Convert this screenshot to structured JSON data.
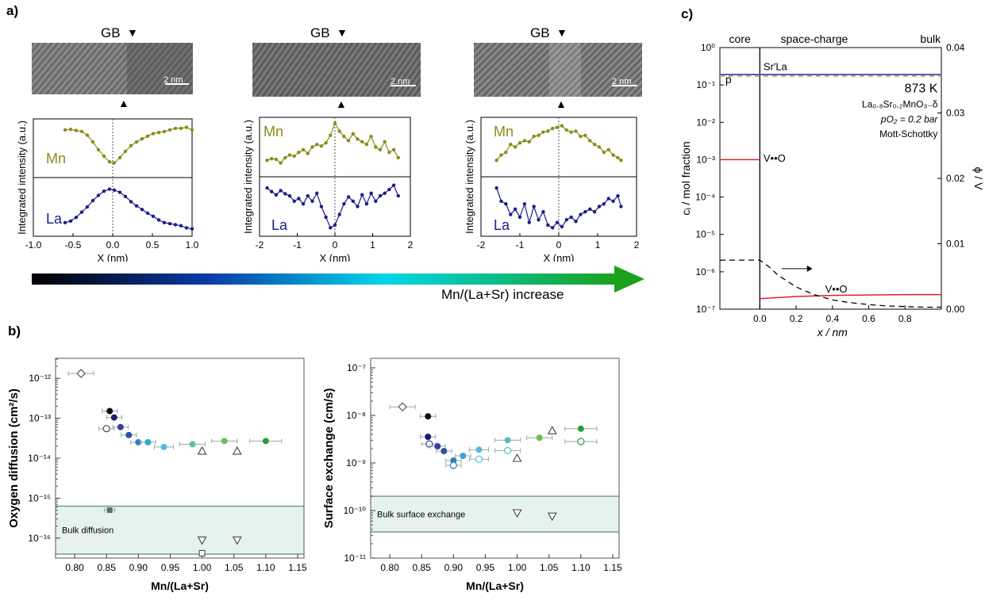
{
  "panel_labels": {
    "a": "a)",
    "b": "b)",
    "c": "c)"
  },
  "gb_label": "GB",
  "scale_bar": "2 nm",
  "gradient_label": "Mn/(La+Sr) increase",
  "colors": {
    "mn": "#8b8b1a",
    "la": "#1c1c8c",
    "gradient_start": "#000000",
    "gradient_mid": "#00e0f0",
    "gradient_end": "#1fa81f",
    "red": "#e0202a",
    "purple": "#7b3fd8",
    "green_dash": "#7ed321"
  },
  "chart_data": [
    {
      "type": "line",
      "id": "a1",
      "ylabel": "Integrated intensity (a.u.)",
      "xlabel": "X (nm)",
      "xlim": [
        -1.0,
        1.0
      ],
      "xticks": [
        "-1.0",
        "-0.5",
        "0.0",
        "0.5",
        "1.0"
      ],
      "series": [
        {
          "name": "Mn",
          "x": [
            -0.6,
            -0.53,
            -0.46,
            -0.39,
            -0.32,
            -0.25,
            -0.18,
            -0.11,
            -0.04,
            0.02,
            0.09,
            0.16,
            0.23,
            0.3,
            0.37,
            0.44,
            0.51,
            0.58,
            0.65,
            0.72,
            0.79,
            0.86,
            0.93,
            1.0
          ],
          "values": [
            0.85,
            0.86,
            0.84,
            0.82,
            0.75,
            0.62,
            0.47,
            0.35,
            0.24,
            0.22,
            0.32,
            0.44,
            0.55,
            0.62,
            0.68,
            0.73,
            0.78,
            0.8,
            0.82,
            0.85,
            0.88,
            0.88,
            0.9,
            0.85
          ]
        },
        {
          "name": "La",
          "x": [
            -0.6,
            -0.53,
            -0.46,
            -0.39,
            -0.32,
            -0.25,
            -0.18,
            -0.11,
            -0.04,
            0.02,
            0.09,
            0.16,
            0.23,
            0.3,
            0.37,
            0.44,
            0.51,
            0.58,
            0.65,
            0.72,
            0.79,
            0.86,
            0.93,
            1.0
          ],
          "values": [
            0.2,
            0.23,
            0.3,
            0.4,
            0.5,
            0.62,
            0.72,
            0.8,
            0.84,
            0.82,
            0.78,
            0.7,
            0.6,
            0.52,
            0.45,
            0.38,
            0.32,
            0.25,
            0.2,
            0.18,
            0.16,
            0.14,
            0.1,
            0.08
          ]
        }
      ]
    },
    {
      "type": "line",
      "id": "a2",
      "ylabel": "Integrated intensity (a.u.)",
      "xlabel": "X (nm)",
      "xlim": [
        -2,
        2
      ],
      "xticks": [
        "-2",
        "-1",
        "0",
        "1",
        "2"
      ],
      "series": [
        {
          "name": "Mn",
          "x": [
            -1.8,
            -1.68,
            -1.56,
            -1.44,
            -1.32,
            -1.2,
            -1.08,
            -0.96,
            -0.84,
            -0.72,
            -0.6,
            -0.48,
            -0.36,
            -0.24,
            -0.12,
            0.0,
            0.12,
            0.24,
            0.36,
            0.48,
            0.6,
            0.72,
            0.84,
            0.96,
            1.08,
            1.2,
            1.32,
            1.44,
            1.56,
            1.68
          ],
          "values": [
            0.25,
            0.28,
            0.27,
            0.2,
            0.3,
            0.35,
            0.33,
            0.4,
            0.45,
            0.38,
            0.5,
            0.55,
            0.52,
            0.58,
            0.72,
            0.95,
            0.8,
            0.7,
            0.62,
            0.75,
            0.65,
            0.6,
            0.55,
            0.7,
            0.5,
            0.45,
            0.6,
            0.4,
            0.45,
            0.3
          ]
        },
        {
          "name": "La",
          "x": [
            -1.8,
            -1.68,
            -1.56,
            -1.44,
            -1.32,
            -1.2,
            -1.08,
            -0.96,
            -0.84,
            -0.72,
            -0.6,
            -0.48,
            -0.36,
            -0.24,
            -0.12,
            0.0,
            0.12,
            0.24,
            0.36,
            0.48,
            0.6,
            0.72,
            0.84,
            0.96,
            1.08,
            1.2,
            1.32,
            1.44,
            1.56,
            1.68
          ],
          "values": [
            0.85,
            0.78,
            0.72,
            0.8,
            0.74,
            0.7,
            0.6,
            0.65,
            0.55,
            0.7,
            0.6,
            0.75,
            0.5,
            0.3,
            0.1,
            0.15,
            0.35,
            0.55,
            0.68,
            0.6,
            0.5,
            0.72,
            0.55,
            0.75,
            0.6,
            0.7,
            0.75,
            0.82,
            0.9,
            0.7
          ]
        }
      ]
    },
    {
      "type": "line",
      "id": "a3",
      "ylabel": "Integrated intensity (a.u.)",
      "xlabel": "X (nm)",
      "xlim": [
        -2,
        2
      ],
      "xticks": [
        "-2",
        "-1",
        "0",
        "1",
        "2"
      ],
      "series": [
        {
          "name": "Mn",
          "x": [
            -1.6,
            -1.48,
            -1.36,
            -1.24,
            -1.12,
            -1.0,
            -0.88,
            -0.76,
            -0.64,
            -0.52,
            -0.4,
            -0.28,
            -0.16,
            -0.04,
            0.08,
            0.2,
            0.32,
            0.44,
            0.56,
            0.68,
            0.8,
            0.92,
            1.04,
            1.16,
            1.28,
            1.4,
            1.52,
            1.6
          ],
          "values": [
            0.25,
            0.35,
            0.4,
            0.55,
            0.5,
            0.58,
            0.62,
            0.6,
            0.7,
            0.72,
            0.78,
            0.8,
            0.85,
            0.87,
            0.9,
            0.82,
            0.78,
            0.8,
            0.7,
            0.72,
            0.62,
            0.55,
            0.5,
            0.4,
            0.45,
            0.35,
            0.3,
            0.25
          ]
        },
        {
          "name": "La",
          "x": [
            -1.6,
            -1.48,
            -1.36,
            -1.24,
            -1.12,
            -1.0,
            -0.88,
            -0.76,
            -0.64,
            -0.52,
            -0.4,
            -0.28,
            -0.16,
            -0.04,
            0.08,
            0.2,
            0.32,
            0.44,
            0.56,
            0.68,
            0.8,
            0.92,
            1.04,
            1.16,
            1.28,
            1.4,
            1.52,
            1.6
          ],
          "values": [
            0.85,
            0.6,
            0.55,
            0.35,
            0.45,
            0.3,
            0.55,
            0.2,
            0.5,
            0.25,
            0.4,
            0.15,
            0.1,
            0.2,
            0.12,
            0.25,
            0.3,
            0.22,
            0.35,
            0.4,
            0.45,
            0.4,
            0.5,
            0.55,
            0.65,
            0.6,
            0.7,
            0.5
          ]
        }
      ]
    },
    {
      "type": "scatter",
      "id": "b1",
      "ylabel": "Oxygen diffusion (cm²/s)",
      "xlabel": "Mn/(La+Sr)",
      "log_y": true,
      "ylim": [
        -16.5,
        -11.5
      ],
      "xlim": [
        0.77,
        1.16
      ],
      "yticks": [
        "10⁻¹⁶",
        "10⁻¹⁵",
        "10⁻¹⁴",
        "10⁻¹³",
        "10⁻¹²"
      ],
      "xticks": [
        "0.80",
        "0.85",
        "0.90",
        "0.95",
        "1.00",
        "1.05",
        "1.10",
        "1.15"
      ],
      "band_label": "Bulk diffusion",
      "band_log": [
        -16.4,
        -15.2
      ],
      "points": [
        {
          "x": 0.81,
          "logy": -11.88,
          "xerr": 0.02,
          "marker": "open-diamond",
          "color": "#555555"
        },
        {
          "x": 0.855,
          "logy": -12.82,
          "xerr": 0.012,
          "marker": "filled",
          "color": "#111111"
        },
        {
          "x": 0.85,
          "logy": -13.26,
          "xerr": 0.012,
          "marker": "open",
          "color": "#444444"
        },
        {
          "x": 0.862,
          "logy": -12.98,
          "xerr": 0.012,
          "marker": "filled",
          "color": "#1a1a6e"
        },
        {
          "x": 0.872,
          "logy": -13.22,
          "xerr": 0.012,
          "marker": "filled",
          "color": "#3a3aa0"
        },
        {
          "x": 0.885,
          "logy": -13.42,
          "xerr": 0.012,
          "marker": "filled",
          "color": "#2f4fa8"
        },
        {
          "x": 0.9,
          "logy": -13.6,
          "xerr": 0.012,
          "marker": "filled",
          "color": "#2a7fc0"
        },
        {
          "x": 0.915,
          "logy": -13.6,
          "xerr": 0.012,
          "marker": "filled",
          "color": "#34a8d8"
        },
        {
          "x": 0.94,
          "logy": -13.72,
          "xerr": 0.015,
          "marker": "filled",
          "color": "#4cc0dc"
        },
        {
          "x": 0.985,
          "logy": -13.65,
          "xerr": 0.02,
          "marker": "filled",
          "color": "#56c2b6"
        },
        {
          "x": 1.035,
          "logy": -13.57,
          "xerr": 0.02,
          "marker": "filled",
          "color": "#6cbd58"
        },
        {
          "x": 1.1,
          "logy": -13.57,
          "xerr": 0.025,
          "marker": "filled",
          "color": "#2f9a3a"
        },
        {
          "x": 1.0,
          "logy": -13.82,
          "xerr": 0,
          "marker": "open-triangle",
          "color": "#444444"
        },
        {
          "x": 1.055,
          "logy": -13.82,
          "xerr": 0,
          "marker": "open-triangle",
          "color": "#444444"
        },
        {
          "x": 0.855,
          "logy": -15.3,
          "xerr": 0.008,
          "marker": "filled-square",
          "color": "#557766"
        },
        {
          "x": 1.0,
          "logy": -16.05,
          "xerr": 0,
          "marker": "open-triangle-down",
          "color": "#444444"
        },
        {
          "x": 1.055,
          "logy": -16.05,
          "xerr": 0,
          "marker": "open-triangle-down",
          "color": "#444444"
        },
        {
          "x": 1.0,
          "logy": -16.38,
          "xerr": 0,
          "marker": "open-square",
          "color": "#444444"
        }
      ]
    },
    {
      "type": "scatter",
      "id": "b2",
      "ylabel": "Surface exchange (cm/s)",
      "xlabel": "Mn/(La+Sr)",
      "log_y": true,
      "ylim": [
        -11,
        -6.8
      ],
      "xlim": [
        0.77,
        1.16
      ],
      "yticks": [
        "10⁻¹¹",
        "10⁻¹⁰",
        "10⁻⁹",
        "10⁻⁸",
        "10⁻⁷"
      ],
      "xticks": [
        "0.80",
        "0.85",
        "0.90",
        "0.95",
        "1.00",
        "1.05",
        "1.10",
        "1.15"
      ],
      "band_label": "Bulk surface exchange",
      "band_log": [
        -10.45,
        -9.7
      ],
      "points": [
        {
          "x": 0.82,
          "logy": -7.82,
          "xerr": 0.02,
          "marker": "open-diamond",
          "color": "#555555"
        },
        {
          "x": 0.86,
          "logy": -8.02,
          "xerr": 0.012,
          "marker": "filled",
          "color": "#111111"
        },
        {
          "x": 0.86,
          "logy": -8.45,
          "xerr": 0.012,
          "marker": "filled",
          "color": "#1a1a6e"
        },
        {
          "x": 0.862,
          "logy": -8.6,
          "xerr": 0.012,
          "marker": "open",
          "color": "#3a3aa0"
        },
        {
          "x": 0.875,
          "logy": -8.65,
          "xerr": 0.012,
          "marker": "filled",
          "color": "#3a3aa0"
        },
        {
          "x": 0.885,
          "logy": -8.75,
          "xerr": 0.012,
          "marker": "filled",
          "color": "#2f4fa8"
        },
        {
          "x": 0.9,
          "logy": -8.95,
          "xerr": 0.012,
          "marker": "filled",
          "color": "#2a7fc0"
        },
        {
          "x": 0.9,
          "logy": -9.05,
          "xerr": 0.012,
          "marker": "open",
          "color": "#2a7fc0"
        },
        {
          "x": 0.915,
          "logy": -8.85,
          "xerr": 0.012,
          "marker": "filled",
          "color": "#34a8d8"
        },
        {
          "x": 0.94,
          "logy": -8.72,
          "xerr": 0.015,
          "marker": "filled",
          "color": "#4cc0dc"
        },
        {
          "x": 0.94,
          "logy": -8.92,
          "xerr": 0.015,
          "marker": "open",
          "color": "#4cc0dc"
        },
        {
          "x": 0.985,
          "logy": -8.52,
          "xerr": 0.02,
          "marker": "filled",
          "color": "#56c2b6"
        },
        {
          "x": 0.985,
          "logy": -8.74,
          "xerr": 0.02,
          "marker": "open",
          "color": "#56c2b6"
        },
        {
          "x": 1.035,
          "logy": -8.47,
          "xerr": 0.02,
          "marker": "filled",
          "color": "#6cbd58"
        },
        {
          "x": 1.1,
          "logy": -8.28,
          "xerr": 0.025,
          "marker": "filled",
          "color": "#2f9a3a"
        },
        {
          "x": 1.1,
          "logy": -8.55,
          "xerr": 0.025,
          "marker": "open",
          "color": "#2f9a3a"
        },
        {
          "x": 1.0,
          "logy": -8.9,
          "xerr": 0,
          "marker": "open-triangle",
          "color": "#444444"
        },
        {
          "x": 1.055,
          "logy": -8.32,
          "xerr": 0,
          "marker": "open-triangle",
          "color": "#444444"
        },
        {
          "x": 1.0,
          "logy": -10.05,
          "xerr": 0,
          "marker": "open-triangle-down",
          "color": "#444444"
        },
        {
          "x": 1.055,
          "logy": -10.12,
          "xerr": 0,
          "marker": "open-triangle-down",
          "color": "#444444"
        }
      ]
    },
    {
      "type": "line",
      "id": "c",
      "ylabel": "cᵢ / mol fraction",
      "ylabel_right": "ϕ / V",
      "xlabel": "x / nm",
      "log_y": true,
      "ylim": [
        -7,
        0
      ],
      "xlim": [
        -0.22,
        1.0
      ],
      "yticks": [
        "10⁻⁷",
        "10⁻⁶",
        "10⁻⁵",
        "10⁻⁴",
        "10⁻³",
        "10⁻²",
        "10⁻¹",
        "10⁰"
      ],
      "yticks_right": [
        "0.00",
        "0.01",
        "0.02",
        "0.03",
        "0.04"
      ],
      "xticks": [
        "0.0",
        "0.2",
        "0.4",
        "0.6",
        "0.8"
      ],
      "regions": [
        "core",
        "space-charge",
        "bulk"
      ],
      "annotations": {
        "temperature": "873 K",
        "composition": "La₀.₈Sr₀.₂MnO₃₋δ",
        "pressure": "pO₂ = 0.2 bar",
        "model": "Mott-Schottky",
        "sr": "Sr′La",
        "p": "p",
        "vo_core": "V••O",
        "vo_bulk": "V••O"
      },
      "series": [
        {
          "name": "Sr′La",
          "x": [
            -0.22,
            1.0
          ],
          "logy": [
            -0.72,
            -0.72
          ]
        },
        {
          "name": "p",
          "x": [
            -0.22,
            1.0
          ],
          "logy": [
            -0.76,
            -0.76
          ]
        },
        {
          "name": "V••O core",
          "x": [
            -0.22,
            0.0
          ],
          "logy": [
            -3.0,
            -3.0
          ]
        },
        {
          "name": "V••O space-charge",
          "x": [
            0.0,
            0.2,
            0.4,
            0.6,
            0.8,
            1.0
          ],
          "logy": [
            -6.72,
            -6.66,
            -6.63,
            -6.62,
            -6.61,
            -6.61
          ]
        },
        {
          "name": "ϕ",
          "x": [
            -0.22,
            0.0,
            0.05,
            0.1,
            0.2,
            0.3,
            0.4,
            0.5,
            0.6,
            0.7,
            0.8,
            0.9,
            1.0
          ],
          "phi": [
            0.0075,
            0.0075,
            0.0065,
            0.0052,
            0.0034,
            0.0022,
            0.0014,
            0.001,
            0.0007,
            0.0005,
            0.0004,
            0.0003,
            0.0003
          ]
        }
      ]
    }
  ]
}
